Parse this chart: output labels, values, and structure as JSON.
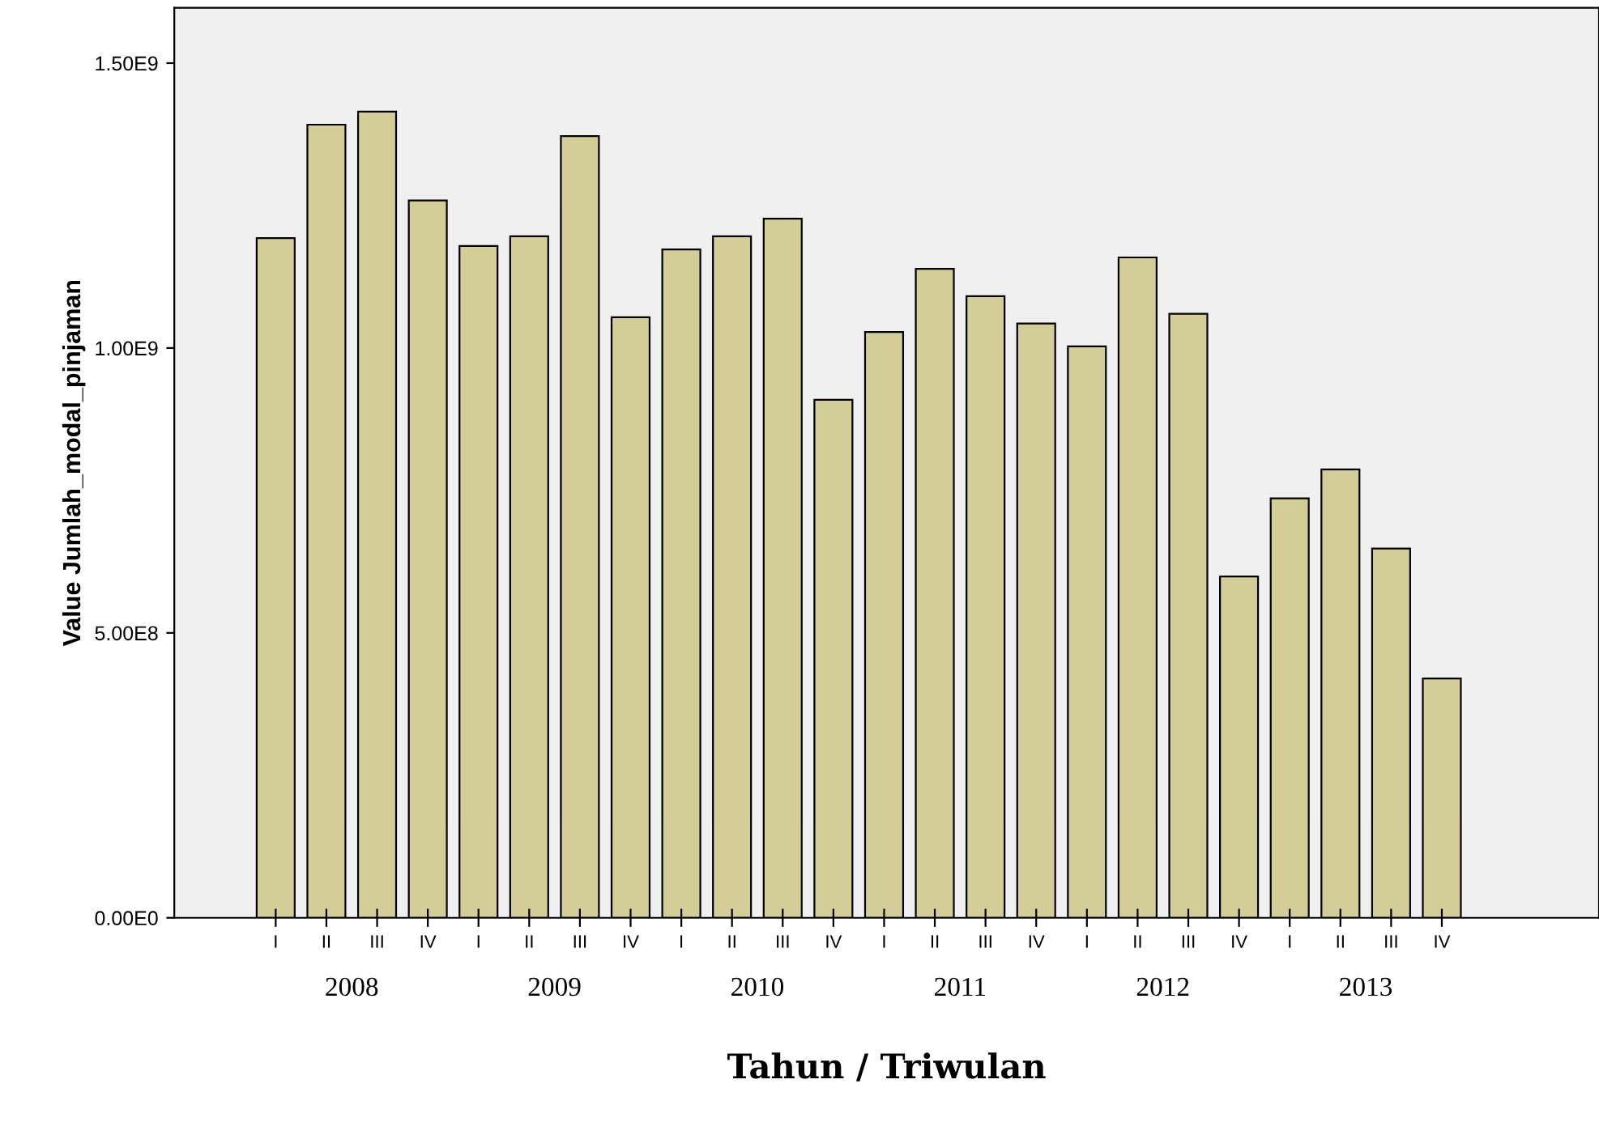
{
  "chart_data": {
    "type": "bar",
    "categories": [
      "I",
      "II",
      "III",
      "IV",
      "I",
      "II",
      "III",
      "IV",
      "I",
      "II",
      "III",
      "IV",
      "I",
      "II",
      "III",
      "IV",
      "I",
      "II",
      "III",
      "IV",
      "I",
      "II",
      "III",
      "IV"
    ],
    "values": [
      1193000000,
      1392000000,
      1415000000,
      1259000000,
      1179000000,
      1196000000,
      1372000000,
      1054000000,
      1173000000,
      1196000000,
      1227000000,
      909000000,
      1028000000,
      1139000000,
      1091000000,
      1043000000,
      1003000000,
      1159000000,
      1060000000,
      599000000,
      736000000,
      787000000,
      648000000,
      420000000
    ],
    "color": "#d3ce97",
    "ylim": [
      0,
      1597000000
    ],
    "yticks": [
      {
        "value": 0,
        "label": "0.00E0"
      },
      {
        "value": 500000000,
        "label": "5.00E8"
      },
      {
        "value": 1000000000,
        "label": "1.00E9"
      },
      {
        "value": 1500000000,
        "label": "1.50E9"
      }
    ],
    "ylabel": "Value Jumlah_modal_pinjaman",
    "xlabel": "Tahun / Triwulan",
    "annotations": [
      "2008",
      "2009",
      "2010",
      "2011",
      "2012",
      "2013"
    ],
    "grid": false,
    "legend": false
  }
}
